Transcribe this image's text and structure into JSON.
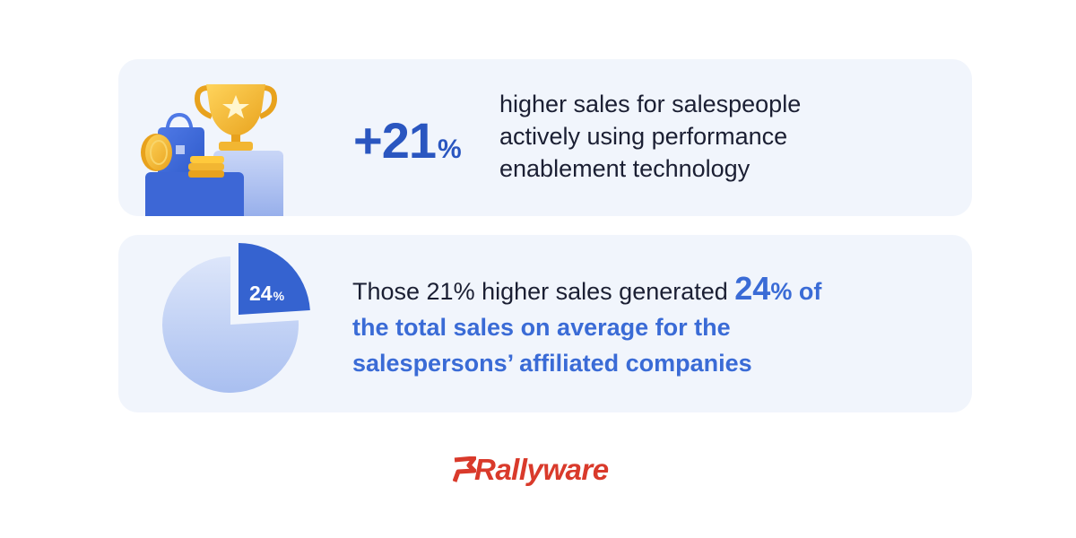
{
  "card1": {
    "stat_value": "+21",
    "stat_unit": "%",
    "line1": "higher sales for salespeople",
    "line2": "actively using performance",
    "line3": "enablement technology",
    "illustration_icons": [
      "trophy-icon",
      "shopping-bag-icon",
      "coin-icon",
      "coin-stack-icon",
      "podium-icon"
    ]
  },
  "card2": {
    "pie_label_value": "24",
    "pie_label_unit": "%",
    "pie_fraction": 0.24,
    "text_lead": "Those 21% higher sales generated ",
    "text_highlight_value": "24",
    "text_highlight_unit": "% of",
    "text_rest_line2": "the total sales on average for the",
    "text_rest_line3": "salespersons’ affiliated companies"
  },
  "brand": {
    "name": "Rallyware",
    "logo_icon": "flag-icon"
  },
  "colors": {
    "card_bg": "#f1f5fc",
    "accent_blue": "#2a56c0",
    "highlight_blue": "#3a6bd6",
    "text_dark": "#1b1f33",
    "brand_red": "#d93a2b",
    "gold": "#f2b632"
  }
}
